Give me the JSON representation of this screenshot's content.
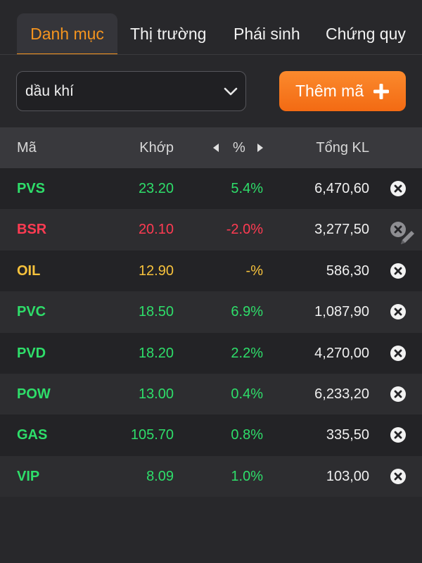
{
  "tabs": [
    {
      "label": "Danh mục",
      "active": true
    },
    {
      "label": "Thị trường",
      "active": false
    },
    {
      "label": "Phái sinh",
      "active": false
    },
    {
      "label": "Chứng quy",
      "active": false
    }
  ],
  "watchlist_selector": {
    "value": "dầu khí",
    "icon": "chevron-down-icon"
  },
  "add_button": {
    "label": "Thêm mã",
    "icon": "plus-icon"
  },
  "table": {
    "headers": {
      "symbol": "Mã",
      "price": "Khớp",
      "percent": "%",
      "volume": "Tổng KL"
    },
    "rows": [
      {
        "symbol": "PVS",
        "price": "23.20",
        "percent": "5.4%",
        "volume": "6,470,60",
        "trend": "up"
      },
      {
        "symbol": "BSR",
        "price": "20.10",
        "percent": "-2.0%",
        "volume": "3,277,50",
        "trend": "down"
      },
      {
        "symbol": "OIL",
        "price": "12.90",
        "percent": "-%",
        "volume": "586,30",
        "trend": "ref"
      },
      {
        "symbol": "PVC",
        "price": "18.50",
        "percent": "6.9%",
        "volume": "1,087,90",
        "trend": "up"
      },
      {
        "symbol": "PVD",
        "price": "18.20",
        "percent": "2.2%",
        "volume": "4,270,00",
        "trend": "up"
      },
      {
        "symbol": "POW",
        "price": "13.00",
        "percent": "0.4%",
        "volume": "6,233,20",
        "trend": "up"
      },
      {
        "symbol": "GAS",
        "price": "105.70",
        "percent": "0.8%",
        "volume": "335,50",
        "trend": "up"
      },
      {
        "symbol": "VIP",
        "price": "8.09",
        "percent": "1.0%",
        "volume": "103,00",
        "trend": "up"
      }
    ]
  },
  "colors": {
    "accent": "#f5941e",
    "up": "#2ede6a",
    "down": "#ff3b52",
    "reference": "#f7c23c",
    "background": "#28282b"
  }
}
